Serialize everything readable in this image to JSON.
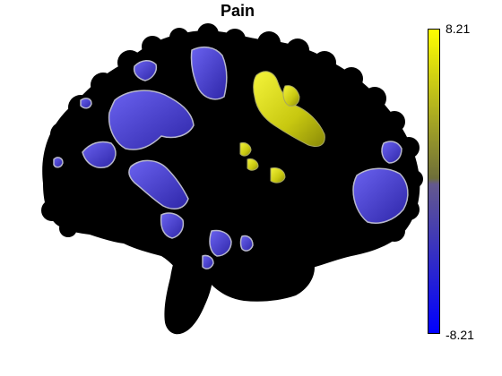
{
  "figure": {
    "title": "Pain",
    "colorbar": {
      "max_label": "8.21",
      "min_label": "-8.21",
      "max_value": 8.21,
      "min_value": -8.21,
      "colors": {
        "top": "#ffff00",
        "upper_mid": "#6e6e3a",
        "lower_mid": "#64598e",
        "bottom": "#0000ff"
      }
    },
    "colors": {
      "brain": "#000000",
      "positive_activation": "#d6d61a",
      "negative_activation": "#4a42c8",
      "activation_edge": "#b8b8cc"
    }
  }
}
